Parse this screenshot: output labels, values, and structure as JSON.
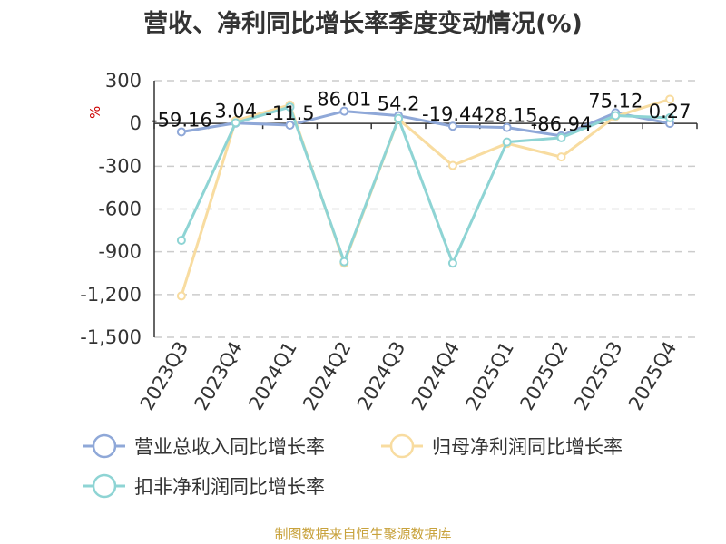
{
  "title": "营收、净利同比增长率季度变动情况(%)",
  "source": "制图数据来自恒生聚源数据库",
  "chart_data": {
    "type": "line",
    "title": "营收、净利同比增长率季度变动情况(%)",
    "ylabel": "%",
    "ylim": [
      -1500,
      300
    ],
    "yticks": [
      "300",
      "0",
      "-300",
      "-600",
      "-900",
      "-1,200",
      "-1,500"
    ],
    "grid": true,
    "legend_position": "bottom",
    "categories": [
      "2023Q3",
      "2023Q4",
      "2024Q1",
      "2024Q2",
      "2024Q3",
      "2024Q4",
      "2025Q1",
      "2025Q2",
      "2025Q3",
      "2025Q4"
    ],
    "series": [
      {
        "name": "营业总收入同比增长率",
        "color": "#8fa8d8",
        "values": [
          -59.16,
          3.04,
          -11.5,
          86.01,
          54.2,
          -19.44,
          -28.15,
          -86.94,
          75.12,
          0.27
        ],
        "labels": [
          "-59.16",
          "3.04",
          "-11.5",
          "86.01",
          "54.2",
          "-19.44",
          "-28.15",
          "-86.94",
          "75.12",
          "0.27"
        ]
      },
      {
        "name": "归母净利润同比增长率",
        "color": "#f8dca0",
        "values": [
          -1210,
          20,
          130,
          -980,
          30,
          -295,
          -140,
          -235,
          50,
          170
        ]
      },
      {
        "name": "扣非净利润同比增长率",
        "color": "#8ed4d4",
        "values": [
          -820,
          5,
          115,
          -970,
          35,
          -980,
          -130,
          -100,
          55,
          40
        ]
      }
    ]
  }
}
